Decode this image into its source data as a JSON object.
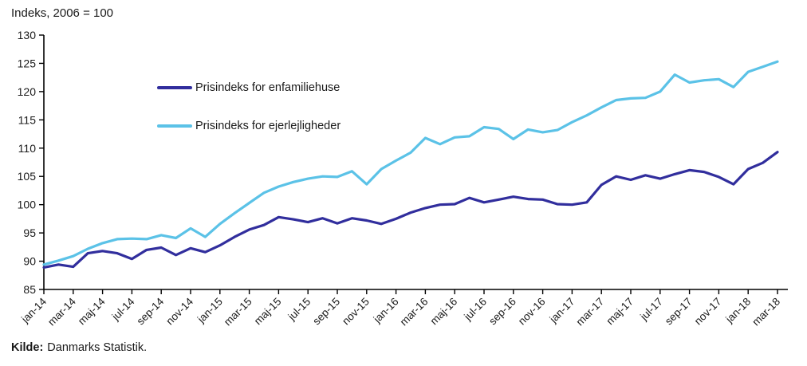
{
  "header": {
    "unit_label": "Indeks, 2006 = 100"
  },
  "source": {
    "prefix": "Kilde:",
    "text": "Danmarks Statistik."
  },
  "chart_data": {
    "type": "line",
    "title": "Indeks, 2006 = 100",
    "x": [
      "jan-14",
      "feb-14",
      "mar-14",
      "apr-14",
      "maj-14",
      "jun-14",
      "jul-14",
      "aug-14",
      "sep-14",
      "okt-14",
      "nov-14",
      "dec-14",
      "jan-15",
      "feb-15",
      "mar-15",
      "apr-15",
      "maj-15",
      "jun-15",
      "jul-15",
      "aug-15",
      "sep-15",
      "okt-15",
      "nov-15",
      "dec-15",
      "jan-16",
      "feb-16",
      "mar-16",
      "apr-16",
      "maj-16",
      "jun-16",
      "jul-16",
      "aug-16",
      "sep-16",
      "okt-16",
      "nov-16",
      "dec-16",
      "jan-17",
      "feb-17",
      "mar-17",
      "apr-17",
      "maj-17",
      "jun-17",
      "jul-17",
      "aug-17",
      "sep-17",
      "okt-17",
      "nov-17",
      "dec-17",
      "jan-18",
      "feb-18",
      "mar-18"
    ],
    "x_tick_labels": [
      "jan-14",
      "mar-14",
      "maj-14",
      "jul-14",
      "sep-14",
      "nov-14",
      "jan-15",
      "mar-15",
      "maj-15",
      "jul-15",
      "sep-15",
      "nov-15",
      "jan-16",
      "mar-16",
      "maj-16",
      "jul-16",
      "sep-16",
      "nov-16",
      "jan-17",
      "mar-17",
      "maj-17",
      "jul-17",
      "sep-17",
      "nov-17",
      "jan-18",
      "mar-18"
    ],
    "y_ticks": [
      85,
      90,
      95,
      100,
      105,
      110,
      115,
      120,
      125,
      130
    ],
    "ylim": [
      85,
      130
    ],
    "grid": false,
    "legend_position": "inside-top-left",
    "axis_color": "#000000",
    "series": [
      {
        "name": "Prisindeks for enfamiliehuse",
        "color": "#312e9d",
        "values": [
          88.9,
          89.4,
          89.0,
          91.4,
          91.8,
          91.4,
          90.4,
          92.0,
          92.4,
          91.1,
          92.3,
          91.6,
          92.8,
          94.3,
          95.6,
          96.4,
          97.8,
          97.4,
          96.9,
          97.6,
          96.7,
          97.6,
          97.2,
          96.6,
          97.5,
          98.6,
          99.4,
          100.0,
          100.1,
          101.2,
          100.4,
          100.9,
          101.4,
          101.0,
          100.9,
          100.1,
          100.0,
          100.4,
          103.5,
          105.0,
          104.4,
          105.2,
          104.6,
          105.4,
          106.1,
          105.8,
          104.9,
          103.6,
          106.3,
          107.4,
          109.3
        ]
      },
      {
        "name": "Prisindeks for ejerlejligheder",
        "color": "#5bc2e7",
        "values": [
          89.4,
          90.1,
          90.9,
          92.2,
          93.2,
          93.9,
          94.0,
          93.9,
          94.6,
          94.1,
          95.8,
          94.3,
          96.6,
          98.5,
          100.3,
          102.1,
          103.2,
          104.0,
          104.6,
          105.0,
          104.9,
          105.9,
          103.6,
          106.3,
          107.8,
          109.2,
          111.8,
          110.7,
          111.9,
          112.1,
          113.7,
          113.4,
          111.6,
          113.3,
          112.8,
          113.2,
          114.6,
          115.8,
          117.2,
          118.5,
          118.8,
          118.9,
          120.0,
          123.0,
          121.6,
          122.0,
          122.2,
          120.8,
          123.5,
          124.4,
          125.3
        ]
      }
    ]
  }
}
